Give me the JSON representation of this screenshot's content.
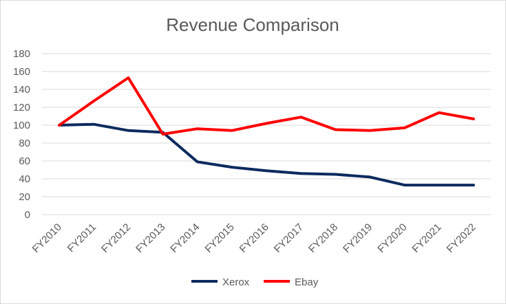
{
  "chart_data": {
    "type": "line",
    "title": "Revenue Comparison",
    "xlabel": "",
    "ylabel": "",
    "categories": [
      "FY2010",
      "FY2011",
      "FY2012",
      "FY2013",
      "FY2014",
      "FY2015",
      "FY2016",
      "FY2017",
      "FY2018",
      "FY2019",
      "FY2020",
      "FY2021",
      "FY2022"
    ],
    "ylim": [
      0,
      180
    ],
    "yticks": [
      0,
      20,
      40,
      60,
      80,
      100,
      120,
      140,
      160,
      180
    ],
    "grid": true,
    "legend_position": "bottom",
    "series": [
      {
        "name": "Xerox",
        "color": "#0b2a5e",
        "values": [
          100,
          101,
          94,
          92,
          59,
          53,
          49,
          46,
          45,
          42,
          33,
          33,
          33
        ]
      },
      {
        "name": "Ebay",
        "color": "#ff0000",
        "values": [
          100,
          127,
          153,
          90,
          96,
          94,
          102,
          109,
          95,
          94,
          97,
          114,
          107
        ]
      }
    ]
  }
}
